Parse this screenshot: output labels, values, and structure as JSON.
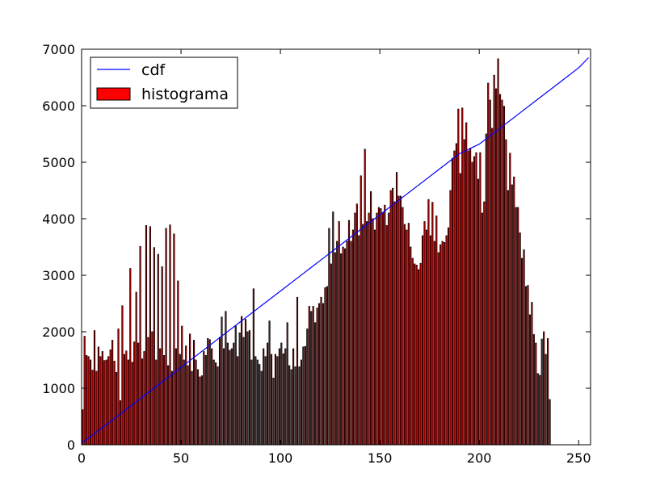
{
  "chart_data": {
    "type": "bar",
    "x_start": 0,
    "x_step": 1,
    "values": [
      620,
      1920,
      1580,
      1560,
      1500,
      1320,
      2020,
      1300,
      1730,
      1560,
      1650,
      1490,
      1500,
      1560,
      1680,
      1850,
      1480,
      1280,
      2050,
      780,
      2460,
      1600,
      1660,
      1500,
      3120,
      1460,
      1820,
      2700,
      1800,
      3510,
      1520,
      1650,
      3880,
      1900,
      3860,
      2000,
      3490,
      1500,
      3370,
      1700,
      3150,
      1580,
      3830,
      1400,
      3890,
      1300,
      3730,
      1700,
      2900,
      1600,
      2100,
      1500,
      1750,
      1400,
      1960,
      1300,
      1850,
      1500,
      1330,
      1200,
      1220,
      1650,
      1580,
      1880,
      1860,
      1700,
      1500,
      1450,
      1380,
      1900,
      2260,
      1700,
      2360,
      1800,
      1670,
      1700,
      1800,
      2100,
      1560,
      1980,
      2270,
      1900,
      2220,
      2000,
      2020,
      1500,
      2760,
      1560,
      1500,
      1420,
      1300,
      1700,
      1560,
      1800,
      2190,
      1600,
      1180,
      1600,
      1560,
      1700,
      1800,
      1610,
      1700,
      2160,
      1400,
      1330,
      1700,
      1380,
      2610,
      1380,
      1500,
      1730,
      1740,
      2050,
      2450,
      2360,
      2450,
      2160,
      2420,
      2500,
      2610,
      2500,
      2780,
      2800,
      3830,
      3200,
      4120,
      3400,
      3600,
      3950,
      3380,
      3500,
      3470,
      3600,
      3970,
      3600,
      3800,
      4100,
      4260,
      3700,
      4760,
      3900,
      5230,
      3950,
      4100,
      4480,
      4000,
      3800,
      4100,
      4200,
      4180,
      4100,
      4240,
      3880,
      4100,
      4500,
      4540,
      4300,
      4820,
      4400,
      4400,
      4200,
      3900,
      3800,
      3920,
      3500,
      3300,
      3200,
      3180,
      3100,
      3210,
      3700,
      3950,
      3800,
      4340,
      3700,
      4290,
      3600,
      4050,
      3400,
      3540,
      3600,
      3580,
      3700,
      3840,
      4500,
      5070,
      5200,
      5330,
      5940,
      4800,
      5960,
      5400,
      5700,
      5200,
      5250,
      5000,
      5100,
      5170,
      4700,
      5170,
      4100,
      4300,
      5500,
      6400,
      6100,
      5600,
      6540,
      6300,
      6830,
      6200,
      6100,
      5990,
      5400,
      4500,
      5160,
      4600,
      4740,
      4200,
      4200,
      3750,
      3300,
      3450,
      2800,
      2820,
      2300,
      2520,
      1950,
      1800,
      1260,
      1230,
      1870,
      2000,
      1600,
      1880,
      800
    ],
    "cdf_x": [
      0,
      10,
      20,
      30,
      40,
      50,
      60,
      70,
      80,
      90,
      100,
      110,
      120,
      130,
      140,
      150,
      160,
      170,
      180,
      190,
      200,
      210,
      220,
      230,
      240,
      250,
      255
    ],
    "cdf_y": [
      30,
      290,
      560,
      830,
      1100,
      1370,
      1640,
      1910,
      2180,
      2450,
      2720,
      2990,
      3260,
      3530,
      3800,
      4070,
      4340,
      4610,
      4880,
      5150,
      5320,
      5590,
      5860,
      6130,
      6400,
      6670,
      6850
    ],
    "xlim": [
      0,
      256
    ],
    "ylim": [
      0,
      7000
    ],
    "x_ticks": [
      0,
      50,
      100,
      150,
      200,
      250
    ],
    "y_ticks": [
      0,
      1000,
      2000,
      3000,
      4000,
      5000,
      6000,
      7000
    ],
    "title": "",
    "xlabel": "",
    "ylabel": "",
    "grid": false,
    "legend_position": "top-left",
    "legend": [
      {
        "name": "cdf",
        "kind": "line",
        "color": "#0000ff"
      },
      {
        "name": "histograma",
        "kind": "patch",
        "color": "#ff0000"
      }
    ],
    "bar_color": "#ff0000",
    "bar_edge_color": "#000000",
    "line_color": "#0000ff"
  }
}
